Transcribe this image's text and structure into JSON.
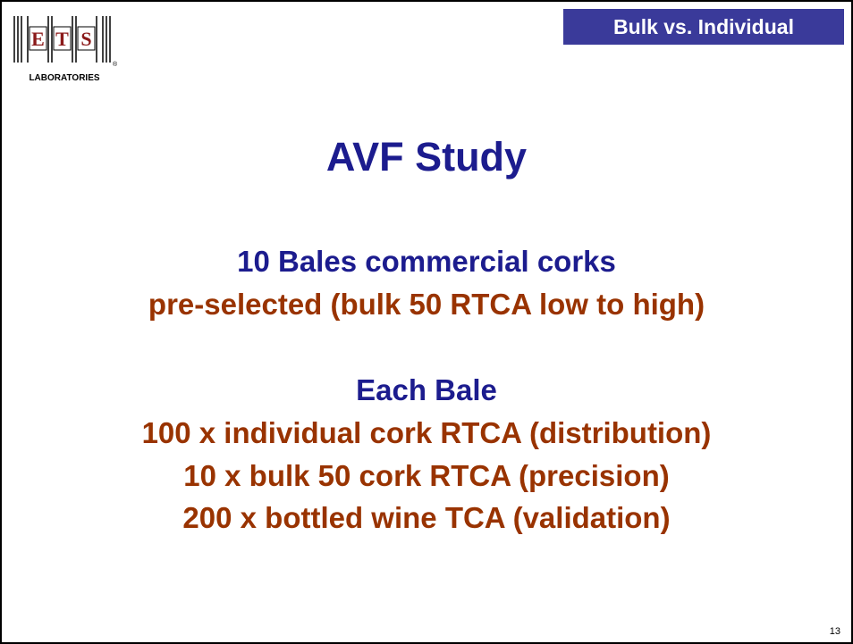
{
  "header": {
    "tag": "Bulk vs. Individual"
  },
  "logo": {
    "letters": [
      "E",
      "T",
      "S"
    ],
    "name": "LABORATORIES",
    "mark": "®"
  },
  "title": "AVF Study",
  "blocks": [
    {
      "heading": "10 Bales commercial corks",
      "lines": [
        "pre-selected (bulk 50 RTCA low to high)"
      ]
    },
    {
      "heading": "Each Bale",
      "lines": [
        "100 x individual cork RTCA (distribution)",
        "10 x bulk 50 cork RTCA (precision)",
        "200 x bottled wine TCA (validation)"
      ]
    }
  ],
  "page_number": "13"
}
